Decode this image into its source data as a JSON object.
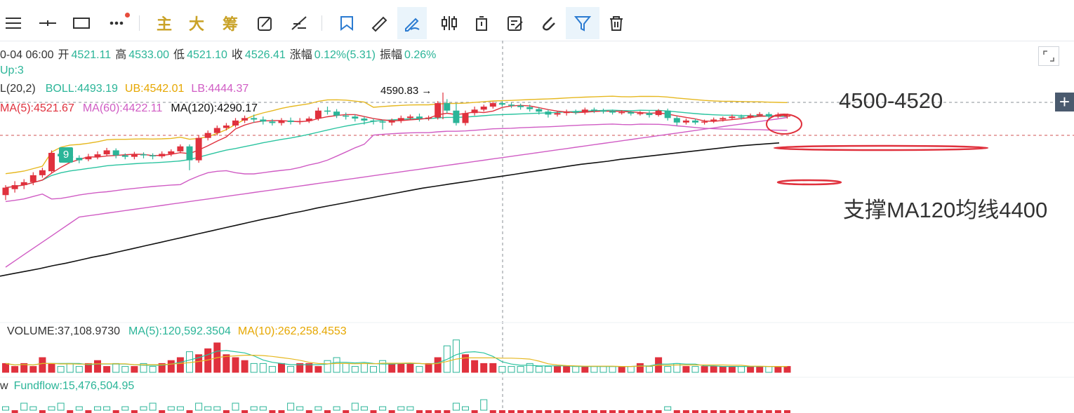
{
  "toolbar": {
    "items": [
      {
        "id": "menu",
        "icon": "hamburger-menu-icon"
      },
      {
        "id": "crosshair",
        "icon": "horizontal-line-icon"
      },
      {
        "id": "rect",
        "icon": "rectangle-icon"
      },
      {
        "id": "more",
        "icon": "more-dots-icon"
      },
      {
        "id": "main",
        "label": "主"
      },
      {
        "id": "big",
        "label": "大"
      },
      {
        "id": "chip",
        "label": "筹"
      },
      {
        "id": "draw1",
        "icon": "pen-square-icon"
      },
      {
        "id": "draw2",
        "icon": "line-tool-icon"
      },
      {
        "id": "bookmark",
        "icon": "bookmark-icon"
      },
      {
        "id": "ruler",
        "icon": "ruler-icon"
      },
      {
        "id": "pencil",
        "icon": "pencil-icon"
      },
      {
        "id": "candles",
        "icon": "candlestick-icon"
      },
      {
        "id": "trash-small",
        "icon": "clipboard-icon"
      },
      {
        "id": "edit",
        "icon": "edit-note-icon"
      },
      {
        "id": "magnet",
        "icon": "magnet-icon"
      },
      {
        "id": "filter",
        "icon": "filter-icon"
      },
      {
        "id": "delete",
        "icon": "trash-icon"
      }
    ]
  },
  "ohlc": {
    "time": "0-04 06:00",
    "open_label": "开",
    "open": "4521.11",
    "high_label": "高",
    "high": "4533.00",
    "low_label": "低",
    "low": "4521.10",
    "close_label": "收",
    "close": "4526.41",
    "change_label": "涨幅",
    "change": "0.12%(5.31)",
    "amplitude_label": "振幅",
    "amplitude": "0.26%"
  },
  "up_line": "Up:3",
  "boll": {
    "param": "L(20,2)",
    "boll": "BOLL:4493.19",
    "ub": "UB:4542.01",
    "lb": "LB:4444.37"
  },
  "ma": {
    "ma5": "MA(5):4521.67",
    "ma60": "MA(60):4422.11",
    "ma120": "MA(120):4290.17"
  },
  "annotations": {
    "resistance": "4500-4520",
    "support": "支撑MA120均线4400",
    "high_marker": "4590.83 →",
    "badge": "9"
  },
  "volume": {
    "volume": "VOLUME:37,108.9730",
    "ma5": "MA(5):120,592.3504",
    "ma10": "MA(10):262,258.4553"
  },
  "fundflow": {
    "prefix": "w",
    "value": "Fundflow:15,476,504.95"
  },
  "colors": {
    "up": "#e0313d",
    "down": "#2bb598",
    "ub": "#e6b820",
    "boll": "#2bc4a0",
    "lb": "#d05cc4",
    "ma5": "#e0313d",
    "ma60": "#d05cc4",
    "ma120": "#111111",
    "annotation": "#e0313d"
  },
  "chart_data": {
    "type": "candlestick",
    "price_range": [
      4220,
      4615
    ],
    "candles": [
      [
        4420,
        4435,
        4410,
        4440
      ],
      [
        4432,
        4440,
        4425,
        4448
      ],
      [
        4440,
        4446,
        4432,
        4452
      ],
      [
        4446,
        4460,
        4440,
        4466
      ],
      [
        4460,
        4470,
        4455,
        4475
      ],
      [
        4468,
        4505,
        4465,
        4510
      ],
      [
        4503,
        4498,
        4490,
        4508
      ],
      [
        4498,
        4495,
        4488,
        4503
      ],
      [
        4495,
        4490,
        4484,
        4500
      ],
      [
        4492,
        4497,
        4488,
        4503
      ],
      [
        4497,
        4502,
        4492,
        4508
      ],
      [
        4502,
        4510,
        4498,
        4515
      ],
      [
        4510,
        4500,
        4494,
        4514
      ],
      [
        4500,
        4497,
        4492,
        4504
      ],
      [
        4497,
        4502,
        4492,
        4507
      ],
      [
        4502,
        4500,
        4494,
        4506
      ],
      [
        4500,
        4498,
        4492,
        4504
      ],
      [
        4498,
        4503,
        4494,
        4508
      ],
      [
        4503,
        4508,
        4498,
        4512
      ],
      [
        4508,
        4518,
        4504,
        4522
      ],
      [
        4518,
        4490,
        4470,
        4522
      ],
      [
        4490,
        4535,
        4485,
        4540
      ],
      [
        4535,
        4545,
        4530,
        4550
      ],
      [
        4545,
        4555,
        4540,
        4560
      ],
      [
        4555,
        4560,
        4550,
        4565
      ],
      [
        4560,
        4570,
        4556,
        4575
      ],
      [
        4570,
        4575,
        4565,
        4580
      ],
      [
        4575,
        4572,
        4566,
        4582
      ],
      [
        4572,
        4568,
        4562,
        4578
      ],
      [
        4568,
        4565,
        4560,
        4573
      ],
      [
        4565,
        4570,
        4560,
        4575
      ],
      [
        4570,
        4567,
        4562,
        4576
      ],
      [
        4567,
        4569,
        4562,
        4575
      ],
      [
        4569,
        4574,
        4565,
        4578
      ],
      [
        4574,
        4590,
        4570,
        4596
      ],
      [
        4590,
        4588,
        4582,
        4598
      ],
      [
        4588,
        4580,
        4575,
        4593
      ],
      [
        4580,
        4578,
        4572,
        4586
      ],
      [
        4578,
        4574,
        4568,
        4582
      ],
      [
        4574,
        4570,
        4562,
        4578
      ],
      [
        4570,
        4568,
        4562,
        4574
      ],
      [
        4568,
        4566,
        4552,
        4572
      ],
      [
        4566,
        4570,
        4560,
        4574
      ],
      [
        4570,
        4575,
        4565,
        4580
      ],
      [
        4575,
        4578,
        4572,
        4582
      ],
      [
        4578,
        4574,
        4568,
        4584
      ],
      [
        4574,
        4576,
        4570,
        4580
      ],
      [
        4576,
        4605,
        4572,
        4609
      ],
      [
        4605,
        4590,
        4585,
        4613
      ],
      [
        4590,
        4565,
        4560,
        4604
      ],
      [
        4565,
        4585,
        4560,
        4590
      ],
      [
        4585,
        4592,
        4580,
        4598
      ],
      [
        4592,
        4598,
        4588,
        4602
      ],
      [
        4598,
        4605,
        4594,
        4608
      ],
      [
        4605,
        4602,
        4598,
        4609
      ],
      [
        4602,
        4600,
        4595,
        4606
      ],
      [
        4600,
        4597,
        4592,
        4604
      ],
      [
        4597,
        4593,
        4588,
        4602
      ],
      [
        4593,
        4588,
        4582,
        4597
      ],
      [
        4588,
        4582,
        4576,
        4592
      ],
      [
        4582,
        4585,
        4578,
        4589
      ],
      [
        4585,
        4588,
        4580,
        4592
      ],
      [
        4588,
        4586,
        4582,
        4592
      ],
      [
        4586,
        4592,
        4582,
        4596
      ],
      [
        4592,
        4590,
        4585,
        4596
      ],
      [
        4590,
        4589,
        4584,
        4594
      ],
      [
        4589,
        4586,
        4582,
        4592
      ],
      [
        4586,
        4587,
        4582,
        4591
      ],
      [
        4587,
        4584,
        4580,
        4590
      ],
      [
        4584,
        4585,
        4580,
        4589
      ],
      [
        4585,
        4581,
        4576,
        4589
      ],
      [
        4581,
        4590,
        4578,
        4593
      ],
      [
        4590,
        4575,
        4570,
        4594
      ],
      [
        4575,
        4566,
        4560,
        4579
      ],
      [
        4566,
        4570,
        4562,
        4574
      ],
      [
        4570,
        4566,
        4562,
        4574
      ],
      [
        4566,
        4568,
        4562,
        4572
      ],
      [
        4568,
        4572,
        4565,
        4576
      ],
      [
        4572,
        4575,
        4568,
        4578
      ],
      [
        4575,
        4578,
        4572,
        4582
      ],
      [
        4578,
        4576,
        4572,
        4582
      ],
      [
        4576,
        4580,
        4574,
        4584
      ],
      [
        4580,
        4583,
        4578,
        4587
      ],
      [
        4583,
        4578,
        4573,
        4587
      ],
      [
        4578,
        4582,
        4575,
        4586
      ],
      [
        4578,
        4580,
        4574,
        4584
      ]
    ],
    "ma120": [
      4257,
      4262,
      4267,
      4272,
      4278,
      4283,
      4289,
      4295,
      4300,
      4306,
      4312,
      4318,
      4324,
      4330,
      4336,
      4342,
      4348,
      4354,
      4360,
      4366,
      4372,
      4377,
      4383,
      4388,
      4394,
      4399,
      4404,
      4409,
      4414,
      4419,
      4424,
      4429,
      4434,
      4438,
      4442,
      4446,
      4450,
      4454,
      4458,
      4462,
      4466,
      4470,
      4474,
      4478,
      4482,
      4485,
      4488,
      4492,
      4495,
      4498,
      4501,
      4504,
      4507,
      4510,
      4513,
      4516,
      4519,
      4521,
      4523,
      4525
    ],
    "volume": [
      3,
      2,
      3,
      2,
      5,
      3,
      2,
      3,
      2,
      3,
      4,
      2,
      3,
      2,
      2,
      3,
      2,
      3,
      4,
      5,
      7,
      6,
      8,
      10,
      6,
      5,
      4,
      3,
      3,
      2,
      3,
      2,
      3,
      3,
      2,
      4,
      5,
      3,
      2,
      3,
      2,
      4,
      3,
      3,
      3,
      2,
      3,
      5,
      9,
      11,
      6,
      4,
      3,
      3,
      2,
      2,
      2,
      3,
      2,
      2,
      2,
      2,
      2,
      2,
      2,
      2,
      2,
      2,
      2,
      3,
      2,
      5,
      2,
      3,
      2,
      2,
      2,
      2,
      2,
      2,
      2,
      2,
      2,
      2,
      2,
      2
    ],
    "fundflow": [
      1,
      -1,
      2,
      1,
      -2,
      1,
      2,
      -1,
      1,
      -2,
      1,
      1,
      -1,
      1,
      -1,
      1,
      2,
      -1,
      1,
      1,
      -2,
      2,
      1,
      1,
      -1,
      2,
      -1,
      1,
      1,
      -1,
      -2,
      2,
      1,
      -1,
      1,
      -1,
      1,
      -2,
      2,
      1,
      -1,
      1,
      -1,
      1,
      1,
      -2,
      -1,
      -2,
      -1,
      2,
      1,
      -1,
      3,
      -1,
      -1,
      -1,
      -1,
      -1,
      -1,
      -1,
      -1,
      -1,
      -1,
      -1,
      -1,
      -1,
      -1,
      -1,
      -1,
      -1,
      -1,
      -1,
      1,
      -1,
      -1,
      -1,
      -1,
      -1,
      -1,
      -1,
      -1,
      -1,
      -1,
      -1,
      -1,
      -1
    ]
  }
}
